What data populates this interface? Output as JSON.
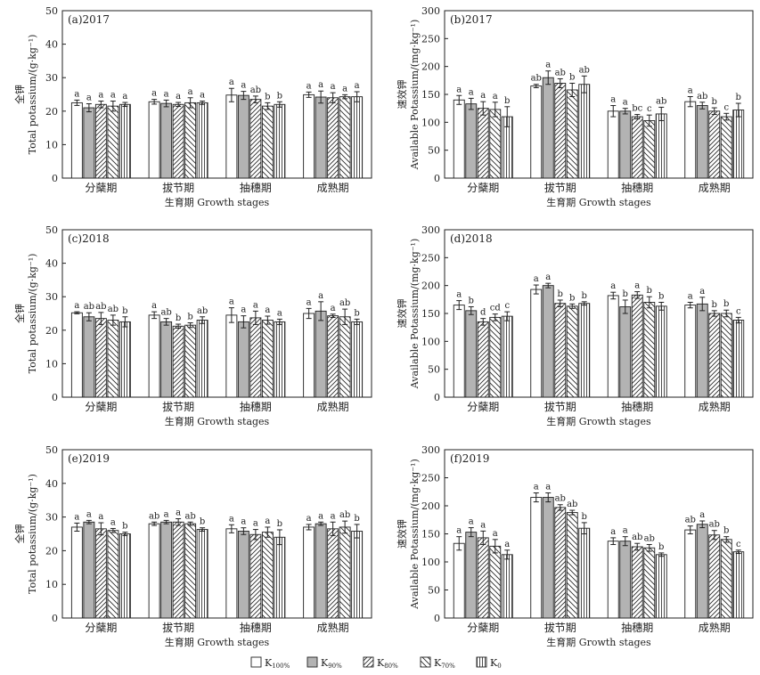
{
  "series_names": [
    "K100%",
    "K90%",
    "K80%",
    "K70%",
    "K0"
  ],
  "legend": [
    {
      "main": "K",
      "sub": "100%"
    },
    {
      "main": "K",
      "sub": "90%"
    },
    {
      "main": "K",
      "sub": "80%"
    },
    {
      "main": "K",
      "sub": "70%"
    },
    {
      "main": "K",
      "sub": "0"
    }
  ],
  "chart_data": [
    {
      "type": "bar",
      "panel_label": "(a)2017",
      "ylabel_cn": "全钾",
      "ylabel_en": "Total potassium/(g·kg⁻¹)",
      "xlabel": "生育期 Growth stages",
      "categories": [
        "分蘖期",
        "拔节期",
        "抽穗期",
        "成熟期"
      ],
      "ylim": [
        0,
        50
      ],
      "yticks": [
        0,
        10,
        20,
        30,
        40,
        50
      ],
      "series": [
        {
          "name": "K100%",
          "values": [
            22.5,
            22.8,
            24.8,
            24.9
          ],
          "errors": [
            0.8,
            0.7,
            2.0,
            0.8
          ],
          "letters": [
            "a",
            "a",
            "a",
            "a"
          ]
        },
        {
          "name": "K90%",
          "values": [
            21.0,
            22.3,
            24.7,
            24.2
          ],
          "errors": [
            1.2,
            1.0,
            1.2,
            1.8
          ],
          "letters": [
            "a",
            "a",
            "a",
            "a"
          ]
        },
        {
          "name": "K80%",
          "values": [
            22.0,
            22.0,
            23.5,
            24.0
          ],
          "errors": [
            1.0,
            0.6,
            1.0,
            1.5
          ],
          "letters": [
            "a",
            "a",
            "ab",
            "a"
          ]
        },
        {
          "name": "K70%",
          "values": [
            21.5,
            22.5,
            21.5,
            24.3
          ],
          "errors": [
            1.5,
            1.5,
            1.0,
            0.6
          ],
          "letters": [
            "a",
            "a",
            "b",
            "a"
          ]
        },
        {
          "name": "K0",
          "values": [
            22.0,
            22.5,
            22.0,
            24.3
          ],
          "errors": [
            0.6,
            0.5,
            0.8,
            1.5
          ],
          "letters": [
            "a",
            "a",
            "b",
            "a"
          ]
        }
      ]
    },
    {
      "type": "bar",
      "panel_label": "(b)2017",
      "ylabel_cn": "速效钾",
      "ylabel_en": "Available Potassium/(mg·kg⁻¹)",
      "xlabel": "生育期 Growth stages",
      "categories": [
        "分蘖期",
        "拔节期",
        "抽穗期",
        "成熟期"
      ],
      "ylim": [
        0,
        300
      ],
      "yticks": [
        0,
        50,
        100,
        150,
        200,
        250,
        300
      ],
      "series": [
        {
          "name": "K100%",
          "values": [
            140,
            165,
            120,
            137
          ],
          "errors": [
            8,
            3,
            10,
            9
          ],
          "letters": [
            "a",
            "ab",
            "a",
            "a"
          ]
        },
        {
          "name": "K90%",
          "values": [
            133,
            180,
            120,
            130
          ],
          "errors": [
            10,
            12,
            5,
            6
          ],
          "letters": [
            "a",
            "a",
            "a",
            "ab"
          ]
        },
        {
          "name": "K80%",
          "values": [
            125,
            170,
            110,
            120
          ],
          "errors": [
            12,
            8,
            4,
            6
          ],
          "letters": [
            "a",
            "ab",
            "bc",
            "b"
          ]
        },
        {
          "name": "K70%",
          "values": [
            123,
            158,
            103,
            110
          ],
          "errors": [
            13,
            12,
            10,
            6
          ],
          "letters": [
            "a",
            "b",
            "c",
            "c"
          ]
        },
        {
          "name": "K0",
          "values": [
            110,
            168,
            115,
            122
          ],
          "errors": [
            18,
            15,
            12,
            12
          ],
          "letters": [
            "b",
            "ab",
            "ab",
            "b"
          ]
        }
      ]
    },
    {
      "type": "bar",
      "panel_label": "(c)2018",
      "ylabel_cn": "全钾",
      "ylabel_en": "Total potassium/(g·kg⁻¹)",
      "xlabel": "生育期 Growth stages",
      "categories": [
        "分蘖期",
        "拔节期",
        "抽穗期",
        "成熟期"
      ],
      "ylim": [
        0,
        50
      ],
      "yticks": [
        0,
        10,
        20,
        30,
        40,
        50
      ],
      "series": [
        {
          "name": "K100%",
          "values": [
            25.2,
            24.5,
            24.5,
            25.0
          ],
          "errors": [
            0.3,
            1.0,
            2.2,
            1.5
          ],
          "letters": [
            "a",
            "a",
            "a",
            "a"
          ]
        },
        {
          "name": "K90%",
          "values": [
            24.0,
            22.5,
            22.5,
            25.7
          ],
          "errors": [
            1.2,
            1.0,
            1.8,
            2.8
          ],
          "letters": [
            "ab",
            "ab",
            "a",
            "a"
          ]
        },
        {
          "name": "K80%",
          "values": [
            23.5,
            21.2,
            23.7,
            24.3
          ],
          "errors": [
            1.8,
            0.6,
            2.0,
            0.5
          ],
          "letters": [
            "ab",
            "b",
            "a",
            "a"
          ]
        },
        {
          "name": "K70%",
          "values": [
            23.0,
            21.5,
            23.0,
            24.0
          ],
          "errors": [
            1.5,
            0.7,
            1.2,
            2.3
          ],
          "letters": [
            "ab",
            "b",
            "a",
            "ab"
          ]
        },
        {
          "name": "K0",
          "values": [
            22.5,
            23.0,
            22.5,
            22.5
          ],
          "errors": [
            1.5,
            1.0,
            0.8,
            0.8
          ],
          "letters": [
            "b",
            "ab",
            "a",
            "b"
          ]
        }
      ]
    },
    {
      "type": "bar",
      "panel_label": "(d)2018",
      "ylabel_cn": "速效钾",
      "ylabel_en": "Available Potassium/(mg·kg⁻¹)",
      "xlabel": "生育期 Growth stages",
      "categories": [
        "分蘖期",
        "拔节期",
        "抽穗期",
        "成熟期"
      ],
      "ylim": [
        0,
        300
      ],
      "yticks": [
        0,
        50,
        100,
        150,
        200,
        250,
        300
      ],
      "series": [
        {
          "name": "K100%",
          "values": [
            165,
            193,
            182,
            165
          ],
          "errors": [
            8,
            8,
            6,
            5
          ],
          "letters": [
            "a",
            "a",
            "a",
            "a"
          ]
        },
        {
          "name": "K90%",
          "values": [
            155,
            200,
            162,
            167
          ],
          "errors": [
            7,
            4,
            12,
            12
          ],
          "letters": [
            "b",
            "a",
            "b",
            "a"
          ]
        },
        {
          "name": "K80%",
          "values": [
            135,
            168,
            183,
            150
          ],
          "errors": [
            6,
            6,
            6,
            5
          ],
          "letters": [
            "d",
            "b",
            "a",
            "b"
          ]
        },
        {
          "name": "K70%",
          "values": [
            143,
            163,
            170,
            150
          ],
          "errors": [
            6,
            4,
            10,
            6
          ],
          "letters": [
            "cd",
            "b",
            "b",
            "b"
          ]
        },
        {
          "name": "K0",
          "values": [
            145,
            168,
            163,
            138
          ],
          "errors": [
            8,
            3,
            7,
            5
          ],
          "letters": [
            "c",
            "b",
            "b",
            "c"
          ]
        }
      ]
    },
    {
      "type": "bar",
      "panel_label": "(e)2019",
      "ylabel_cn": "全钾",
      "ylabel_en": "Total potassium/(g·kg⁻¹)",
      "xlabel": "生育期 Growth stages",
      "categories": [
        "分蘖期",
        "拔节期",
        "抽穗期",
        "成熟期"
      ],
      "ylim": [
        0,
        50
      ],
      "yticks": [
        0,
        10,
        20,
        30,
        40,
        50
      ],
      "series": [
        {
          "name": "K100%",
          "values": [
            27.0,
            28.0,
            26.5,
            27.0
          ],
          "errors": [
            1.2,
            0.5,
            1.2,
            0.8
          ],
          "letters": [
            "a",
            "ab",
            "a",
            "a"
          ]
        },
        {
          "name": "K90%",
          "values": [
            28.5,
            28.5,
            25.8,
            28.0
          ],
          "errors": [
            0.5,
            0.5,
            1.0,
            0.5
          ],
          "letters": [
            "a",
            "a",
            "a",
            "a"
          ]
        },
        {
          "name": "K80%",
          "values": [
            26.5,
            28.5,
            24.8,
            26.5
          ],
          "errors": [
            1.8,
            1.0,
            1.5,
            2.0
          ],
          "letters": [
            "a",
            "a",
            "a",
            "a"
          ]
        },
        {
          "name": "K70%",
          "values": [
            26.0,
            28.0,
            25.5,
            27.0
          ],
          "errors": [
            0.6,
            0.5,
            1.5,
            1.8
          ],
          "letters": [
            "a",
            "ab",
            "a",
            "ab"
          ]
        },
        {
          "name": "K0",
          "values": [
            25.0,
            26.3,
            24.0,
            25.8
          ],
          "errors": [
            0.5,
            0.5,
            2.2,
            2.0
          ],
          "letters": [
            "b",
            "b",
            "b",
            "b"
          ]
        }
      ]
    },
    {
      "type": "bar",
      "panel_label": "(f)2019",
      "ylabel_cn": "速效钾",
      "ylabel_en": "Available Potassium/(mg·kg⁻¹)",
      "xlabel": "生育期 Growth stages",
      "categories": [
        "分蘖期",
        "拔节期",
        "抽穗期",
        "成熟期"
      ],
      "ylim": [
        0,
        300
      ],
      "yticks": [
        0,
        50,
        100,
        150,
        200,
        250,
        300
      ],
      "series": [
        {
          "name": "K100%",
          "values": [
            133,
            215,
            137,
            157
          ],
          "errors": [
            12,
            8,
            6,
            7
          ],
          "letters": [
            "a",
            "a",
            "a",
            "ab"
          ]
        },
        {
          "name": "K90%",
          "values": [
            153,
            215,
            137,
            167
          ],
          "errors": [
            8,
            8,
            8,
            6
          ],
          "letters": [
            "a",
            "a",
            "a",
            "a"
          ]
        },
        {
          "name": "K80%",
          "values": [
            143,
            197,
            127,
            148
          ],
          "errors": [
            12,
            5,
            6,
            8
          ],
          "letters": [
            "a",
            "ab",
            "ab",
            "ab"
          ]
        },
        {
          "name": "K70%",
          "values": [
            128,
            188,
            125,
            140
          ],
          "errors": [
            12,
            4,
            6,
            5
          ],
          "letters": [
            "a",
            "ab",
            "ab",
            "b"
          ]
        },
        {
          "name": "K0",
          "values": [
            113,
            160,
            113,
            118
          ],
          "errors": [
            8,
            10,
            3,
            3
          ],
          "letters": [
            "a",
            "b",
            "b",
            "c"
          ]
        }
      ]
    }
  ]
}
